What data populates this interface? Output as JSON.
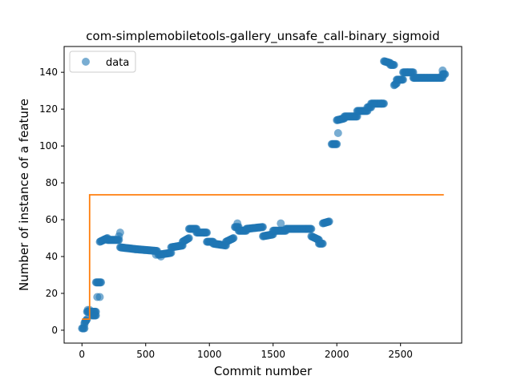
{
  "chart_data": {
    "type": "scatter",
    "title": "com-simplemobiletools-gallery_unsafe_call-binary_sigmoid",
    "xlabel": "Commit number",
    "ylabel": "Number of instance of a feature",
    "xlim": [
      -140,
      2980
    ],
    "ylim": [
      -7,
      154
    ],
    "xticks": [
      0,
      500,
      1000,
      1500,
      2000,
      2500
    ],
    "yticks": [
      0,
      20,
      40,
      60,
      80,
      100,
      120,
      140
    ],
    "grid": false,
    "legend": {
      "position": "upper-left",
      "entries": [
        "data"
      ]
    },
    "colors": {
      "data": "#1f77b4",
      "fit": "#ff7f0e"
    },
    "series": [
      {
        "name": "data",
        "kind": "scatter",
        "segments": [
          [
            0,
            1,
            20,
            1
          ],
          [
            20,
            4,
            40,
            6
          ],
          [
            40,
            10,
            110,
            10
          ],
          [
            80,
            8,
            110,
            8
          ],
          [
            110,
            26,
            150,
            26
          ],
          [
            140,
            48,
            200,
            50
          ],
          [
            200,
            49,
            290,
            49
          ],
          [
            300,
            45,
            420,
            44
          ],
          [
            420,
            44,
            590,
            43
          ],
          [
            600,
            41,
            700,
            42
          ],
          [
            700,
            45,
            790,
            46
          ],
          [
            790,
            48,
            840,
            50
          ],
          [
            840,
            55,
            900,
            55
          ],
          [
            900,
            53,
            980,
            53
          ],
          [
            980,
            48,
            1030,
            48
          ],
          [
            1030,
            47,
            1130,
            46
          ],
          [
            1130,
            48,
            1190,
            50
          ],
          [
            1200,
            56,
            1230,
            56
          ],
          [
            1230,
            54,
            1290,
            54
          ],
          [
            1290,
            55,
            1420,
            56
          ],
          [
            1420,
            51,
            1500,
            52
          ],
          [
            1500,
            54,
            1600,
            54
          ],
          [
            1600,
            55,
            1800,
            55
          ],
          [
            1800,
            51,
            1860,
            49
          ],
          [
            1860,
            47,
            1890,
            47
          ],
          [
            1890,
            58,
            1940,
            59
          ],
          [
            1960,
            101,
            2000,
            101
          ],
          [
            2000,
            114,
            2060,
            115
          ],
          [
            2060,
            116,
            2160,
            116
          ],
          [
            2160,
            119,
            2240,
            119
          ],
          [
            2240,
            121,
            2270,
            121
          ],
          [
            2270,
            123,
            2370,
            123
          ],
          [
            2370,
            146,
            2420,
            145
          ],
          [
            2420,
            144,
            2450,
            144
          ],
          [
            2450,
            133,
            2470,
            134
          ],
          [
            2470,
            136,
            2520,
            136
          ],
          [
            2520,
            140,
            2600,
            140
          ],
          [
            2600,
            137,
            2830,
            137
          ],
          [
            2830,
            139,
            2850,
            139
          ]
        ],
        "points": [
          [
            20,
            3
          ],
          [
            30,
            5
          ],
          [
            45,
            11
          ],
          [
            60,
            11
          ],
          [
            120,
            18
          ],
          [
            140,
            18
          ],
          [
            300,
            53
          ],
          [
            290,
            51
          ],
          [
            580,
            41
          ],
          [
            620,
            40
          ],
          [
            1220,
            58
          ],
          [
            1560,
            58
          ],
          [
            2010,
            107
          ],
          [
            2350,
            123
          ],
          [
            2610,
            137
          ],
          [
            2830,
            141
          ]
        ]
      },
      {
        "name": "",
        "kind": "line",
        "x": [
          0,
          60,
          60,
          2840
        ],
        "y": [
          6,
          6,
          73.5,
          73.5
        ]
      }
    ]
  }
}
